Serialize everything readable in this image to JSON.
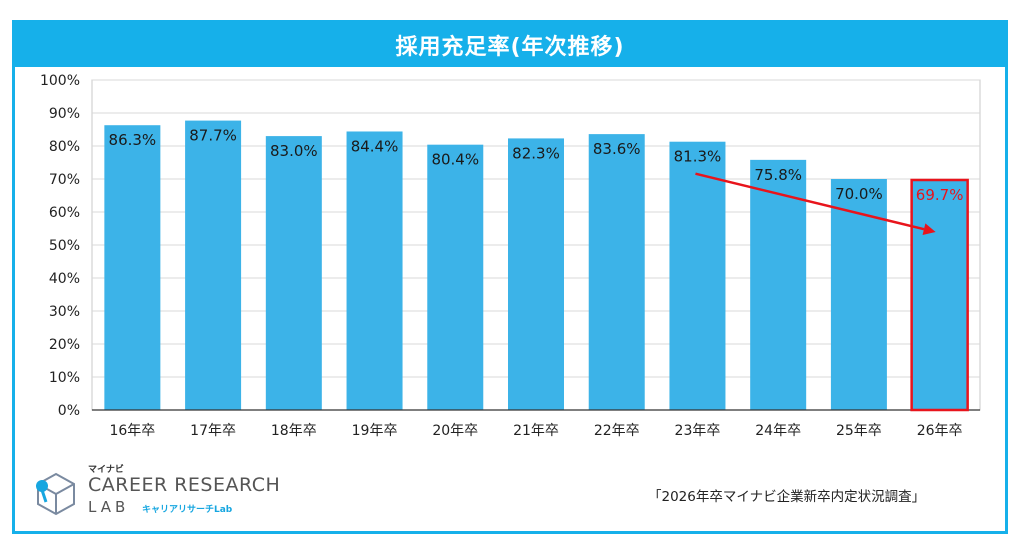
{
  "chart_data": {
    "type": "bar",
    "title": "採用充足率(年次推移)",
    "categories": [
      "16年卒",
      "17年卒",
      "18年卒",
      "19年卒",
      "20年卒",
      "21年卒",
      "22年卒",
      "23年卒",
      "24年卒",
      "25年卒",
      "26年卒"
    ],
    "values": [
      86.3,
      87.7,
      83.0,
      84.4,
      80.4,
      82.3,
      83.6,
      81.3,
      75.8,
      70.0,
      69.7
    ],
    "data_labels": [
      "86.3%",
      "87.7%",
      "83.0%",
      "84.4%",
      "80.4%",
      "82.3%",
      "83.6%",
      "81.3%",
      "75.8%",
      "70.0%",
      "69.7%"
    ],
    "y_ticks": [
      "0%",
      "10%",
      "20%",
      "30%",
      "40%",
      "50%",
      "60%",
      "70%",
      "80%",
      "90%",
      "100%"
    ],
    "ylim": [
      0,
      100
    ],
    "grid": true,
    "highlight_index": 10,
    "trend_arrow": {
      "from_category": "23年卒",
      "to_category": "26年卒"
    },
    "colors": {
      "bar": "#3cb3e8",
      "highlight": "#e8141c",
      "header": "#16b0ea"
    }
  },
  "source": "「2026年卒マイナビ企業新卒内定状況調査」",
  "logo": {
    "brand_small": "マイナビ",
    "line1": "CAREER RESEARCH",
    "line2": "LAB",
    "line2_sub": "キャリアリサーチLab"
  }
}
